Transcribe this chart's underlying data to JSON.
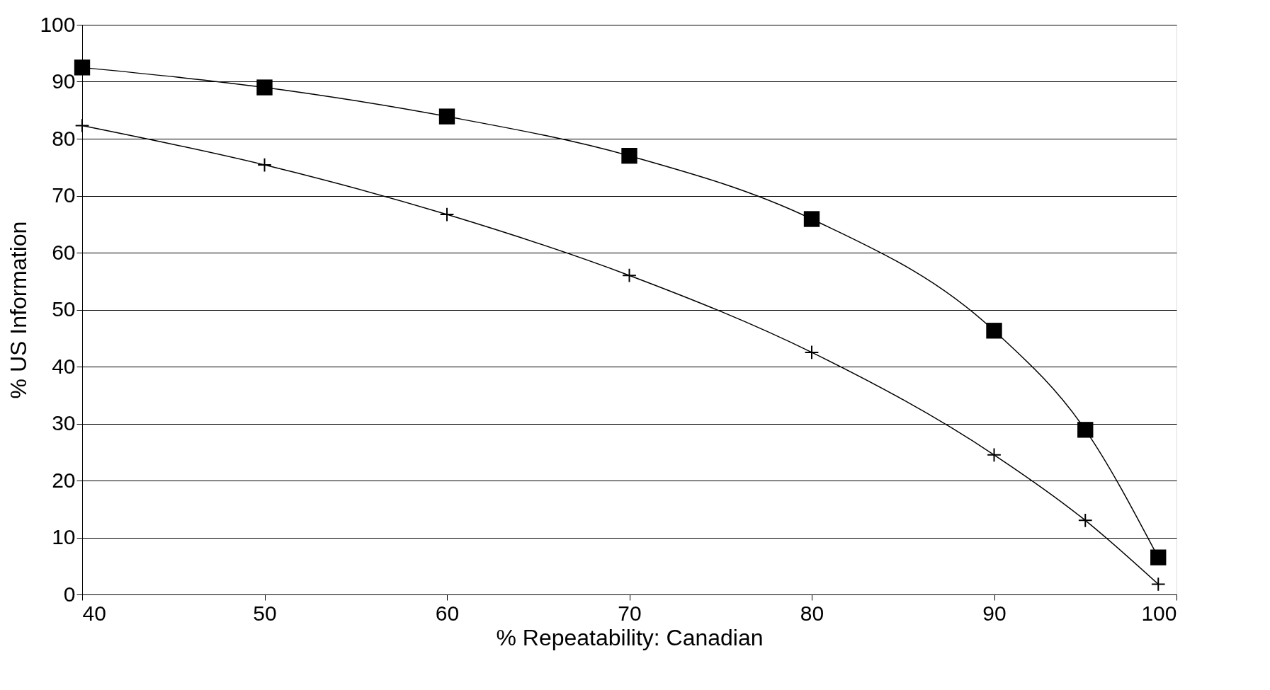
{
  "chart_data": {
    "type": "line",
    "xlabel": "% Repeatability: Canadian",
    "ylabel": "% US Information",
    "x": [
      40,
      50,
      60,
      70,
      80,
      90,
      95,
      99
    ],
    "series": [
      {
        "color": "#000000",
        "marker": "square",
        "values": [
          92.5,
          89,
          83.9,
          77,
          65.9,
          46.3,
          28.9,
          6.5
        ]
      },
      {
        "color": "#000000",
        "marker": "cross",
        "values": [
          82.3,
          75.4,
          66.7,
          56,
          42.5,
          24.5,
          13,
          1.8
        ]
      }
    ],
    "xlim": [
      40,
      100
    ],
    "xticks": [
      40,
      50,
      60,
      70,
      80,
      90,
      100
    ],
    "ylim": [
      0,
      100
    ],
    "yticks": [
      0,
      10,
      20,
      30,
      40,
      50,
      60,
      70,
      80,
      90,
      100
    ],
    "grid": "y",
    "line_style": "solid"
  }
}
